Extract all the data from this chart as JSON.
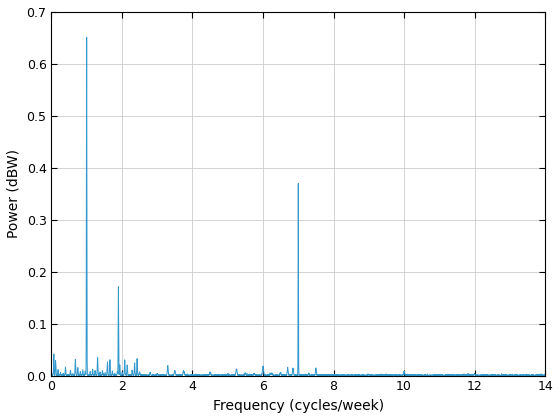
{
  "xlabel": "Frequency (cycles/week)",
  "ylabel": "Power (dBW)",
  "xlim": [
    0,
    14
  ],
  "ylim": [
    0,
    0.7
  ],
  "xticks": [
    0,
    2,
    4,
    6,
    8,
    10,
    12,
    14
  ],
  "yticks": [
    0,
    0.1,
    0.2,
    0.3,
    0.4,
    0.5,
    0.6,
    0.7
  ],
  "line_color": "#3399cc",
  "background_color": "#ffffff",
  "grid_color": "#cccccc",
  "peak1_freq": 1.0,
  "peak1_amp": 0.665,
  "peak2_freq": 1.9,
  "peak2_amp": 0.172,
  "peak3_freq": 7.0,
  "peak3_amp": 0.393,
  "seed": 7
}
